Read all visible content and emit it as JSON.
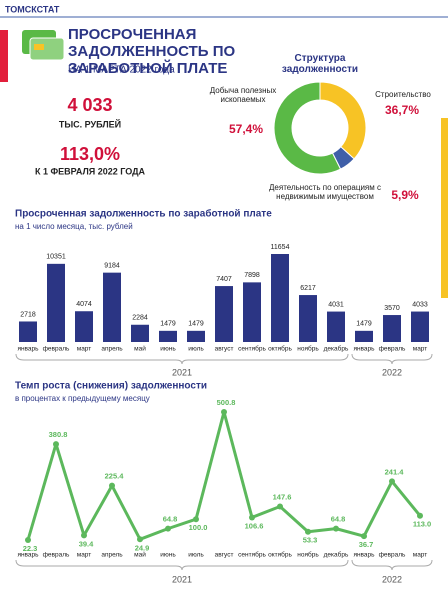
{
  "header": {
    "agency": "ТОМСКСТАТ",
    "title": "ПРОСРОЧЕННАЯ ЗАДОЛЖЕННОСТЬ ПО ЗАРАБОТНОЙ ПЛАТЕ",
    "subtitle": "НА 1 МАРТА 2022 года"
  },
  "kpis": [
    {
      "value": "4 033",
      "label": "ТЫС. РУБЛЕЙ"
    },
    {
      "value": "113,0%",
      "label": "К 1 ФЕВРАЛЯ 2022 ГОДА"
    }
  ],
  "chart_data": [
    {
      "type": "pie",
      "title": "Структура задолженности",
      "categories": [
        "Добыча полезных ископаемых",
        "Строительство",
        "Деятельность по операциям с недвижимым имуществом"
      ],
      "values": [
        57.4,
        36.7,
        5.9
      ],
      "value_labels": [
        "57,4%",
        "36,7%",
        "5,9%"
      ],
      "colors": [
        "#5ab946",
        "#f7c325",
        "#3f5fa8"
      ]
    },
    {
      "type": "bar",
      "title": "Просроченная задолженность по заработной плате",
      "subtitle": "на 1 число месяца, тыс. рублей",
      "categories": [
        "январь",
        "февраль",
        "март",
        "апрель",
        "май",
        "июнь",
        "июль",
        "август",
        "сентябрь",
        "октябрь",
        "ноябрь",
        "декабрь",
        "январь",
        "февраль",
        "март"
      ],
      "values": [
        2718,
        10351,
        4074,
        9184,
        2284,
        1479,
        1479,
        7407,
        7898,
        11654,
        6217,
        4031,
        1479,
        3570,
        4033
      ],
      "color": "#2b3584",
      "groups": [
        "2021",
        "2022"
      ]
    },
    {
      "type": "line",
      "title": "Темп роста (снижения) задолженности",
      "subtitle": "в процентах к предыдущему месяцу",
      "categories": [
        "январь",
        "февраль",
        "март",
        "апрель",
        "май",
        "июнь",
        "июль",
        "август",
        "сентябрь",
        "октябрь",
        "ноябрь",
        "декабрь",
        "январь",
        "февраль",
        "март"
      ],
      "values": [
        22.3,
        380.8,
        39.4,
        225.4,
        24.9,
        64.8,
        100.0,
        500.8,
        106.6,
        147.6,
        53.3,
        64.8,
        36.7,
        241.4,
        113.0
      ],
      "value_labels": [
        "22.3",
        "380.8",
        "39.4",
        "225.4",
        "24.9",
        "64.8",
        "100.0",
        "500.8",
        "106.6",
        "147.6",
        "53.3",
        "64.8",
        "36.7",
        "241.4",
        "113.0"
      ],
      "color": "#5cb85c",
      "groups": [
        "2021",
        "2022"
      ]
    }
  ]
}
